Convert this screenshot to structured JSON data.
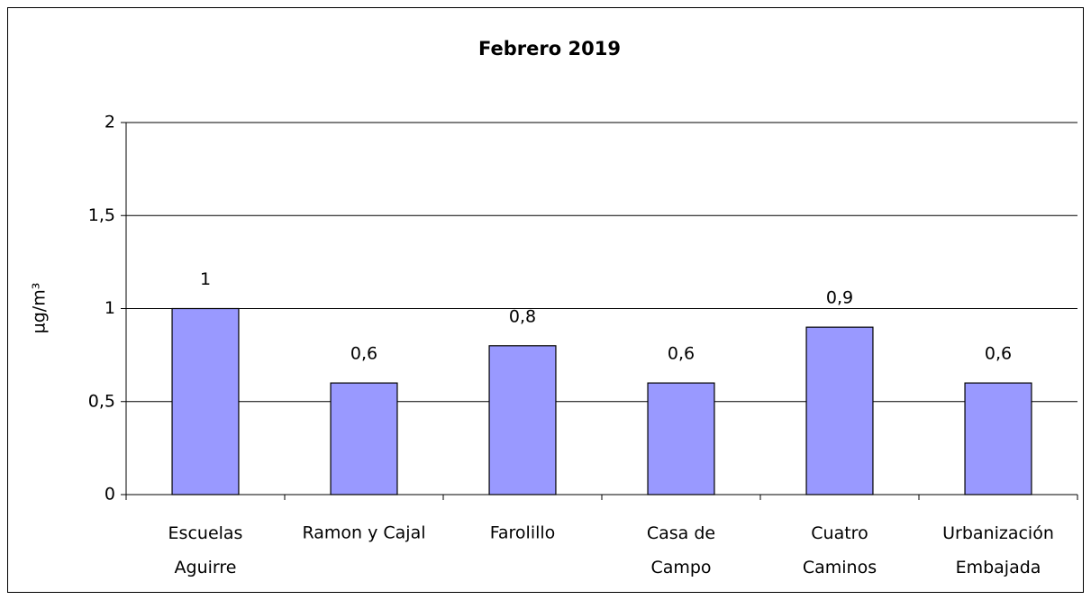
{
  "chart_data": {
    "type": "bar",
    "title": "Febrero 2019",
    "y_label": "µg/m³",
    "categories": [
      "Escuelas\nAguirre",
      "Ramon y Cajal",
      "Farolillo",
      "Casa de\nCampo",
      "Cuatro\nCaminos",
      "Urbanización\nEmbajada"
    ],
    "values": [
      1,
      0.6,
      0.8,
      0.6,
      0.9,
      0.6
    ],
    "value_labels": [
      "1",
      "0,6",
      "0,8",
      "0,6",
      "0,9",
      "0,6"
    ],
    "color": "#9999ff",
    "ylim": [
      0,
      2
    ],
    "yticks": [
      0,
      {
        "value": 0.5,
        "label": "0,5"
      },
      1,
      {
        "value": 1.5,
        "label": "1,5"
      },
      2
    ],
    "grid": true
  }
}
